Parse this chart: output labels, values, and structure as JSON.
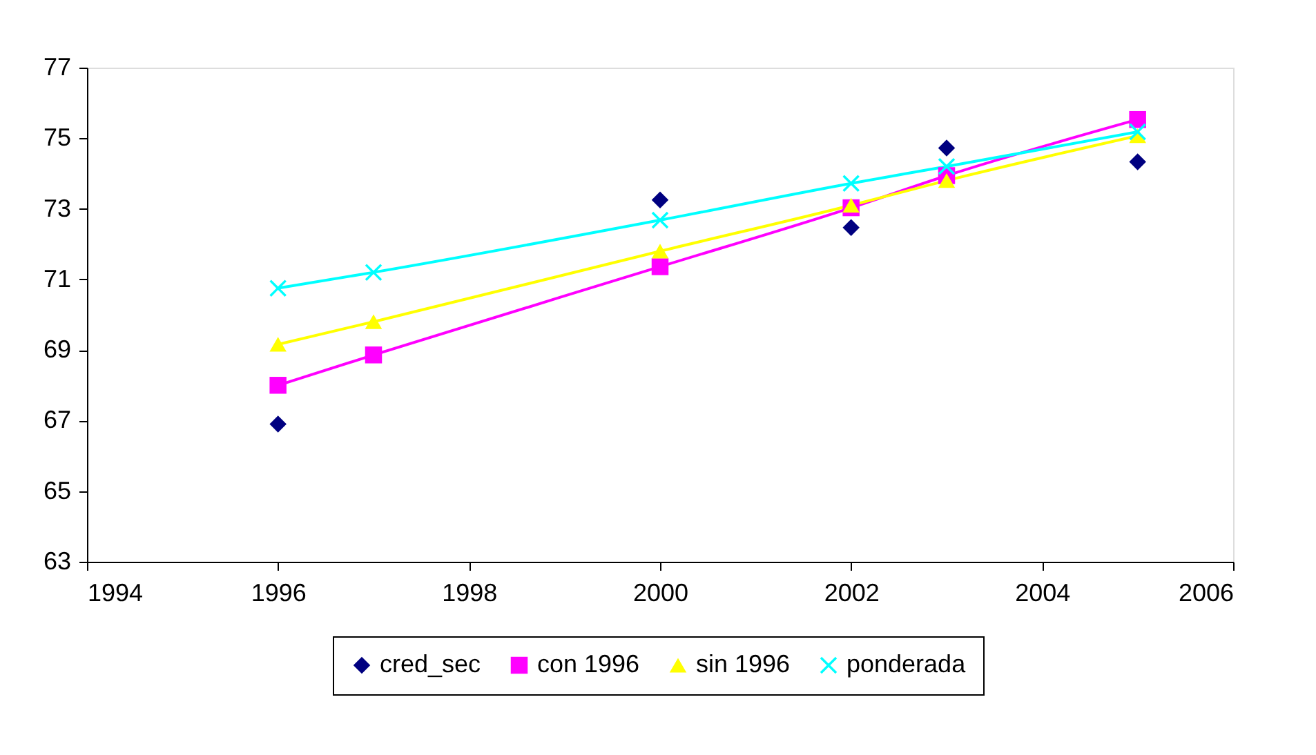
{
  "chart_data": {
    "type": "line",
    "x": [
      1996,
      1997,
      2000,
      2002,
      2003,
      2005
    ],
    "series": [
      {
        "name": "cred_sec",
        "type": "scatter",
        "marker": "diamond",
        "color": "#000080",
        "values": [
          66.9,
          null,
          73.25,
          72.47,
          74.72,
          74.33
        ]
      },
      {
        "name": "con 1996",
        "marker": "square",
        "color": "#ff00ff",
        "values": [
          68.0,
          68.86,
          71.36,
          73.03,
          73.94,
          75.53
        ]
      },
      {
        "name": "sin 1996",
        "marker": "triangle",
        "color": "#ffff00",
        "values": [
          69.16,
          69.8,
          71.8,
          73.1,
          73.8,
          75.07
        ]
      },
      {
        "name": "ponderada",
        "marker": "cross",
        "color": "#00ffff",
        "values": [
          70.75,
          71.2,
          72.68,
          73.72,
          74.2,
          75.18
        ]
      }
    ],
    "xlim": [
      1994,
      2006
    ],
    "xticks": [
      1994,
      1996,
      1998,
      2000,
      2002,
      2004,
      2006
    ],
    "ylim": [
      63,
      77
    ],
    "yticks": [
      63,
      65,
      67,
      69,
      71,
      73,
      75,
      77
    ],
    "grid": false,
    "legend": "bottom"
  }
}
